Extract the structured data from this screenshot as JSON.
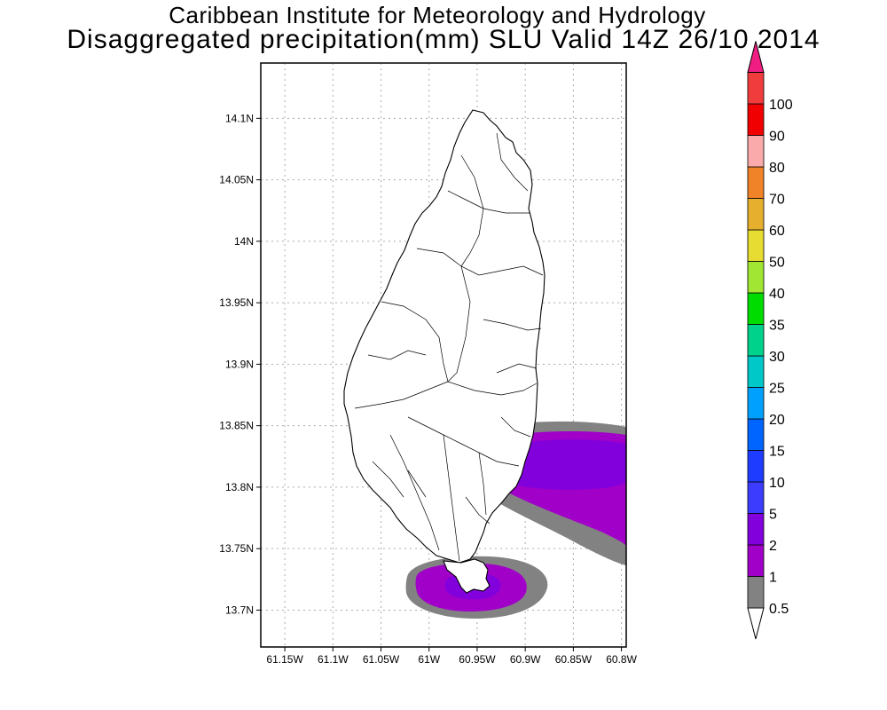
{
  "header": {
    "title_line1": "Caribbean Institute for Meteorology and Hydrology",
    "title_line2": "Disaggregated precipitation(mm) SLU Valid 14Z 26/10 2014"
  },
  "map": {
    "lat_range": [
      13.67,
      14.145
    ],
    "lon_range": [
      -61.175,
      -60.795
    ],
    "lat_ticks": [
      {
        "value": 14.1,
        "label": "14.1N"
      },
      {
        "value": 14.05,
        "label": "14.05N"
      },
      {
        "value": 14.0,
        "label": "14N"
      },
      {
        "value": 13.95,
        "label": "13.95N"
      },
      {
        "value": 13.9,
        "label": "13.9N"
      },
      {
        "value": 13.85,
        "label": "13.85N"
      },
      {
        "value": 13.8,
        "label": "13.8N"
      },
      {
        "value": 13.75,
        "label": "13.75N"
      },
      {
        "value": 13.7,
        "label": "13.7N"
      }
    ],
    "lon_ticks": [
      {
        "value": -61.15,
        "label": "61.15W"
      },
      {
        "value": -61.1,
        "label": "61.1W"
      },
      {
        "value": -61.05,
        "label": "61.05W"
      },
      {
        "value": -61.0,
        "label": "61W"
      },
      {
        "value": -60.95,
        "label": "60.95W"
      },
      {
        "value": -60.9,
        "label": "60.9W"
      },
      {
        "value": -60.85,
        "label": "60.85W"
      },
      {
        "value": -60.8,
        "label": "60.8W"
      }
    ],
    "grid": true,
    "land_color": "#ffffff",
    "boundary_color": "#000000"
  },
  "precip_areas": [
    {
      "name": "east-coast-band",
      "level_mm": 0.5,
      "color": "#828282"
    },
    {
      "name": "east-coast-band",
      "level_mm": 1,
      "color": "#a000c8"
    },
    {
      "name": "east-coast-band",
      "level_mm": 2,
      "color": "#8200dc"
    },
    {
      "name": "south-tip-cell",
      "level_mm": 0.5,
      "color": "#828282"
    },
    {
      "name": "south-tip-cell",
      "level_mm": 1,
      "color": "#a000c8"
    },
    {
      "name": "south-tip-cell",
      "level_mm": 2,
      "color": "#8200dc"
    }
  ],
  "colorbar": {
    "levels": [
      {
        "label": "0.5",
        "color": "#828282"
      },
      {
        "label": "1",
        "color": "#a000c8"
      },
      {
        "label": "2",
        "color": "#8200dc"
      },
      {
        "label": "5",
        "color": "#3c3cff"
      },
      {
        "label": "10",
        "color": "#1e3cff"
      },
      {
        "label": "15",
        "color": "#0064ff"
      },
      {
        "label": "20",
        "color": "#00a0ff"
      },
      {
        "label": "25",
        "color": "#00c8c8"
      },
      {
        "label": "30",
        "color": "#00d28c"
      },
      {
        "label": "35",
        "color": "#00dc00"
      },
      {
        "label": "40",
        "color": "#a0e632"
      },
      {
        "label": "50",
        "color": "#e6dc32"
      },
      {
        "label": "60",
        "color": "#e6af2d"
      },
      {
        "label": "70",
        "color": "#f08228"
      },
      {
        "label": "80",
        "color": "#faaaaa"
      },
      {
        "label": "90",
        "color": "#f00000"
      },
      {
        "label": "100",
        "color": "#f03c3c"
      }
    ],
    "below_color": "#ffffff",
    "above_color": "#f01e82"
  }
}
